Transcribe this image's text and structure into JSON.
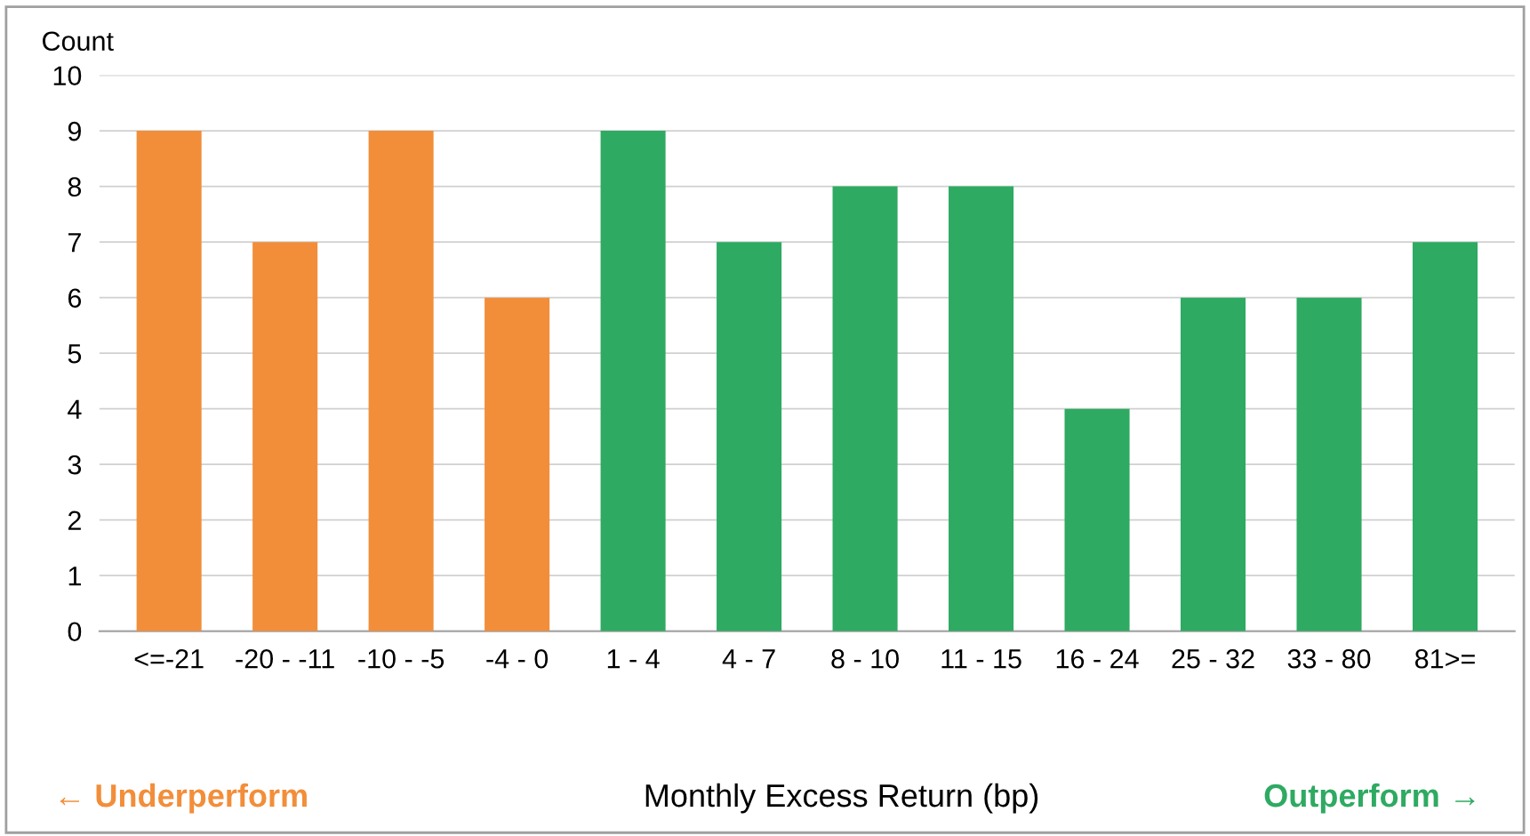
{
  "chart_data": {
    "type": "bar",
    "xlabel": "Monthly Excess Return (bp)",
    "ylabel": "Count",
    "categories": [
      "<=-21",
      "-20 - -11",
      "-10 - -5",
      "-4 - 0",
      "1 - 4",
      "4 - 7",
      "8 - 10",
      "11 - 15",
      "16 - 24",
      "25 - 32",
      "33 - 80",
      "81>="
    ],
    "values": [
      9,
      7,
      9,
      6,
      9,
      7,
      8,
      8,
      4,
      6,
      6,
      7
    ],
    "colors": [
      "#f28e3a",
      "#f28e3a",
      "#f28e3a",
      "#f28e3a",
      "#2eaa62",
      "#2eaa62",
      "#2eaa62",
      "#2eaa62",
      "#2eaa62",
      "#2eaa62",
      "#2eaa62",
      "#2eaa62"
    ],
    "ylim": [
      0,
      10
    ],
    "yticks": [
      0,
      1,
      2,
      3,
      4,
      5,
      6,
      7,
      8,
      9,
      10
    ],
    "grid": "y",
    "annotations": [
      "← Underperform",
      "Outperform →"
    ]
  }
}
